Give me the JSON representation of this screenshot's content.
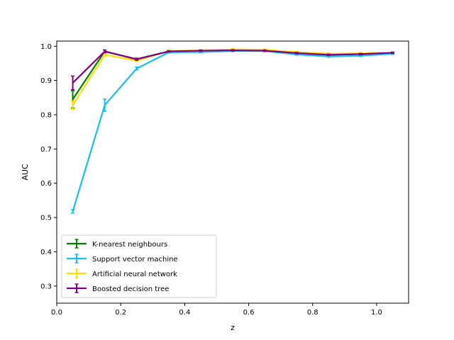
{
  "chart_data": {
    "type": "line",
    "title": "",
    "xlabel": "z",
    "ylabel": "AUC",
    "xlim": [
      0.0,
      1.1
    ],
    "ylim": [
      0.25,
      1.015
    ],
    "xticks": [
      0.0,
      0.2,
      0.4,
      0.6,
      0.8,
      1.0
    ],
    "xtick_labels": [
      "0.0",
      "0.2",
      "0.4",
      "0.6",
      "0.8",
      "1.0"
    ],
    "yticks": [
      0.3,
      0.4,
      0.5,
      0.6,
      0.7,
      0.8,
      0.9,
      1.0
    ],
    "ytick_labels": [
      "0.3",
      "0.4",
      "0.5",
      "0.6",
      "0.7",
      "0.8",
      "0.9",
      "1.0"
    ],
    "grid": false,
    "legend_position": "lower-left",
    "x": [
      0.05,
      0.15,
      0.25,
      0.35,
      0.45,
      0.55,
      0.65,
      0.75,
      0.85,
      0.95,
      1.05
    ],
    "series": [
      {
        "name": "K-nearest neighbours",
        "color": "#008000",
        "values": [
          0.845,
          0.985,
          0.962,
          0.985,
          0.986,
          0.988,
          0.987,
          0.98,
          0.975,
          0.977,
          0.98
        ],
        "errors": [
          0.025,
          0.004,
          0.003,
          0.002,
          0.002,
          0.002,
          0.002,
          0.002,
          0.002,
          0.002,
          0.002
        ]
      },
      {
        "name": "Support vector machine",
        "color": "#14bff0",
        "values": [
          0.518,
          0.828,
          0.935,
          0.982,
          0.983,
          0.986,
          0.986,
          0.976,
          0.97,
          0.972,
          0.978
        ],
        "errors": [
          0.005,
          0.018,
          0.004,
          0.002,
          0.002,
          0.002,
          0.002,
          0.002,
          0.002,
          0.002,
          0.002
        ]
      },
      {
        "name": "Artificial neural network",
        "color": "#ffdd00",
        "values": [
          0.828,
          0.975,
          0.958,
          0.986,
          0.988,
          0.991,
          0.99,
          0.983,
          0.978,
          0.979,
          0.981
        ],
        "errors": [
          0.012,
          0.004,
          0.003,
          0.002,
          0.002,
          0.002,
          0.002,
          0.002,
          0.002,
          0.002,
          0.002
        ]
      },
      {
        "name": "Boosted decision tree",
        "color": "#800080",
        "values": [
          0.893,
          0.985,
          0.962,
          0.985,
          0.987,
          0.988,
          0.987,
          0.98,
          0.975,
          0.977,
          0.981
        ],
        "errors": [
          0.02,
          0.004,
          0.003,
          0.002,
          0.002,
          0.002,
          0.002,
          0.002,
          0.002,
          0.002,
          0.002
        ]
      }
    ]
  }
}
